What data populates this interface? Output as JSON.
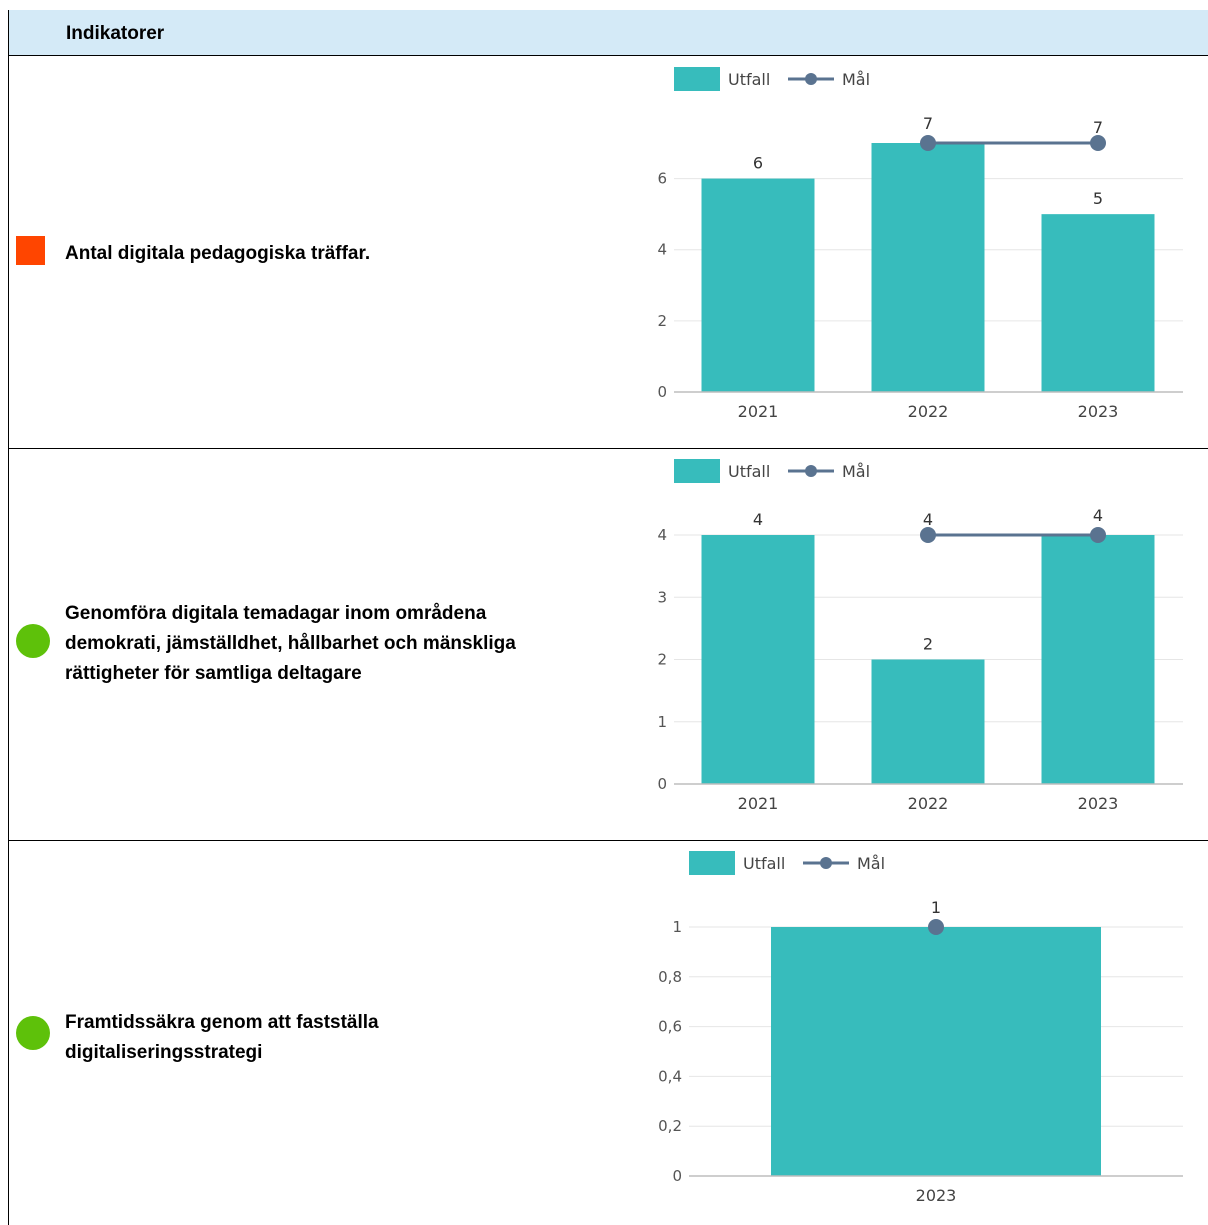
{
  "header": {
    "title": "Indikatorer"
  },
  "legend": {
    "bar_label": "Utfall",
    "line_label": "Mål"
  },
  "colors": {
    "bar": "#37bcbc",
    "line": "#5a7390",
    "status_red": "#ff4500",
    "status_green": "#5ec10a",
    "header_bg": "#d4eaf7"
  },
  "rows": [
    {
      "indicator": "Antal digitala pedagogiska träffar.",
      "status": "red"
    },
    {
      "indicator": "Genomföra digitala temadagar inom områdena demokrati, jämställdhet, hållbarhet och mänskliga rättigheter för samtliga deltagare",
      "status": "green"
    },
    {
      "indicator": "Framtidssäkra genom att fastställa digitaliseringsstrategi",
      "status": "green"
    }
  ],
  "chart_data": [
    {
      "type": "bar",
      "categories": [
        "2021",
        "2022",
        "2023"
      ],
      "series": [
        {
          "name": "Utfall",
          "type": "bar",
          "values": [
            6,
            7,
            5
          ]
        },
        {
          "name": "Mål",
          "type": "line",
          "values": [
            null,
            7,
            7
          ]
        }
      ],
      "yticks": [
        "0",
        "2",
        "4",
        "6"
      ],
      "ylim": [
        0,
        7
      ],
      "legend_position": "top"
    },
    {
      "type": "bar",
      "categories": [
        "2021",
        "2022",
        "2023"
      ],
      "series": [
        {
          "name": "Utfall",
          "type": "bar",
          "values": [
            4,
            2,
            4
          ]
        },
        {
          "name": "Mål",
          "type": "line",
          "values": [
            null,
            4,
            4
          ]
        }
      ],
      "yticks": [
        "0",
        "1",
        "2",
        "3",
        "4"
      ],
      "ylim": [
        0,
        4
      ],
      "legend_position": "top"
    },
    {
      "type": "bar",
      "categories": [
        "2023"
      ],
      "series": [
        {
          "name": "Utfall",
          "type": "bar",
          "values": [
            1
          ]
        },
        {
          "name": "Mål",
          "type": "line",
          "values": [
            1
          ]
        }
      ],
      "yticks": [
        "0",
        "0,2",
        "0,4",
        "0,6",
        "0,8",
        "1"
      ],
      "ylim": [
        0,
        1
      ],
      "legend_position": "top"
    }
  ]
}
